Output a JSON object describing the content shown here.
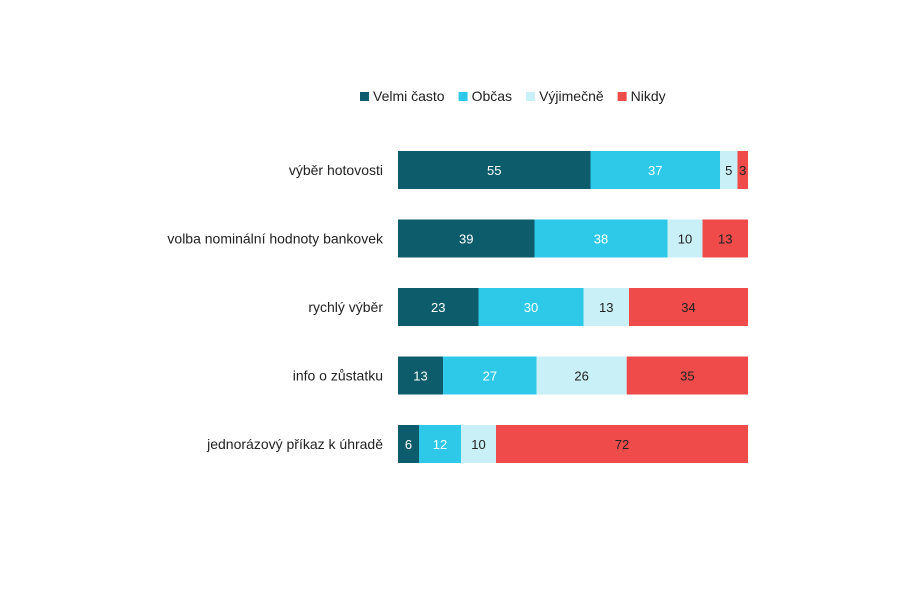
{
  "chart_data": {
    "type": "bar",
    "orientation": "horizontal",
    "stacked": true,
    "percent_stacked": true,
    "title": "",
    "xlabel": "",
    "ylabel": "",
    "xlim": [
      0,
      100
    ],
    "grid": false,
    "legend_position": "top",
    "categories": [
      "výběr hotovosti",
      "volba nominální hodnoty bankovek",
      "rychlý výběr",
      "info o zůstatku",
      "jednorázový příkaz k úhradě"
    ],
    "series": [
      {
        "name": "Velmi často",
        "color": "#0d5c6b",
        "label_color": "#ffffff",
        "values": [
          55,
          39,
          23,
          13,
          6
        ]
      },
      {
        "name": "Občas",
        "color": "#2ec9e8",
        "label_color": "#ffffff",
        "values": [
          37,
          38,
          30,
          27,
          12
        ]
      },
      {
        "name": "Výjimečně",
        "color": "#c9eff7",
        "label_color": "#222222",
        "values": [
          5,
          10,
          13,
          26,
          10
        ]
      },
      {
        "name": "Nikdy",
        "color": "#f04b4b",
        "label_color": "#222222",
        "values": [
          3,
          13,
          34,
          35,
          72
        ]
      }
    ]
  }
}
